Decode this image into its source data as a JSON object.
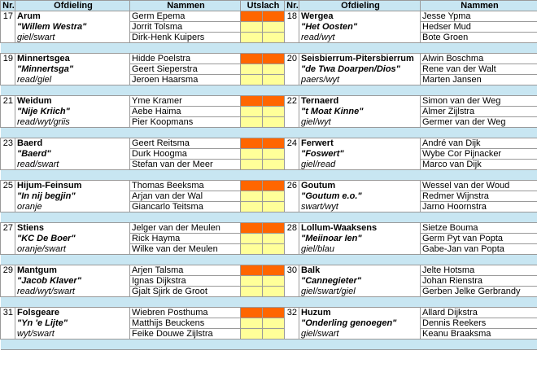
{
  "colors": {
    "header_bg": "#c8e6f2",
    "result_top": "#ff6600",
    "result_cell": "#ffff99"
  },
  "headers": {
    "nr": "Nr.",
    "ofdieling": "Ofdieling",
    "nammen": "Nammen",
    "utslach": "Utslach",
    "nr2": "Nr.",
    "ofdieling2": "Ofdieling",
    "nammen2": "Nammen"
  },
  "matches": [
    {
      "left": {
        "nr": "17",
        "club": "Arum",
        "nick": "\"Willem Westra\"",
        "colors": "giel/swart",
        "players": [
          "Germ Epema",
          "Jorrit Tolsma",
          "Dirk-Henk Kuipers"
        ]
      },
      "right": {
        "nr": "18",
        "club": "Wergea",
        "nick": "\"Het Oosten\"",
        "colors": "read/wyt",
        "players": [
          "Jesse Ypma",
          "Hedser Mud",
          "Bote Groen"
        ]
      }
    },
    {
      "left": {
        "nr": "19",
        "club": "Minnertsgea",
        "nick": "\"Minnertsga\"",
        "colors": "read/giel",
        "players": [
          "Hidde Poelstra",
          "Geert Sieperstra",
          "Jeroen Haarsma"
        ]
      },
      "right": {
        "nr": "20",
        "club": "Seisbierrum-Pitersbierrum",
        "nick": "\"de Twa Doarpen/Dios\"",
        "colors": "paers/wyt",
        "players": [
          "Alwin Boschma",
          "Rene van der Walt",
          "Marten Jansen"
        ]
      }
    },
    {
      "left": {
        "nr": "21",
        "club": "Weidum",
        "nick": "\"Nije Kriich\"",
        "colors": "read/wyt/griis",
        "players": [
          "Yme Kramer",
          "Aebe Haima",
          "Pier Koopmans"
        ]
      },
      "right": {
        "nr": "22",
        "club": "Ternaerd",
        "nick": "\"t Moat Kinne\"",
        "colors": "giel/wyt",
        "players": [
          "Simon van der Weg",
          "Almer Zijlstra",
          "Germer van der Weg"
        ]
      }
    },
    {
      "left": {
        "nr": "23",
        "club": "Baerd",
        "nick": "\"Baerd\"",
        "colors": "read/swart",
        "players": [
          "Geert Reitsma",
          "Durk Hoogma",
          "Stefan van der Meer"
        ]
      },
      "right": {
        "nr": "24",
        "club": "Ferwert",
        "nick": "\"Foswert\"",
        "colors": "giel/read",
        "players": [
          "André van Dijk",
          "Wybe Cor Pijnacker",
          "Marco van Dijk"
        ]
      }
    },
    {
      "left": {
        "nr": "25",
        "club": "Hijum-Feinsum",
        "nick": "\"In nij begjin\"",
        "colors": "oranje",
        "players": [
          "Thomas Beeksma",
          "Arjan van der Wal",
          "Giancarlo Teitsma"
        ]
      },
      "right": {
        "nr": "26",
        "club": "Goutum",
        "nick": "\"Goutum e.o.\"",
        "colors": "swart/wyt",
        "players": [
          "Wessel van der Woud",
          "Redmer Wijnstra",
          "Jarno Hoornstra"
        ]
      }
    },
    {
      "left": {
        "nr": "27",
        "club": "Stiens",
        "nick": "\"KC De Boer\"",
        "colors": "oranje/swart",
        "players": [
          "Jelger van der Meulen",
          "Rick Hayma",
          "Wilke van der Meulen"
        ]
      },
      "right": {
        "nr": "28",
        "club": "Lollum-Waaksens",
        "nick": "\"Meiinoar Ien\"",
        "colors": "giel/blau",
        "players": [
          "Sietze Bouma",
          "Germ Pyt van Popta",
          "Gabe-Jan van Popta"
        ]
      }
    },
    {
      "left": {
        "nr": "29",
        "club": "Mantgum",
        "nick": "\"Jacob Klaver\"",
        "colors": "read/wyt/swart",
        "players": [
          "Arjen Talsma",
          "Ignas Dijkstra",
          "Gjalt Sjirk de Groot"
        ]
      },
      "right": {
        "nr": "30",
        "club": "Balk",
        "nick": "\"Cannegieter\"",
        "colors": "giel/swart/giel",
        "players": [
          "Jelte Hotsma",
          "Johan Rienstra",
          "Gerben Jelke Gerbrandy"
        ]
      }
    },
    {
      "left": {
        "nr": "31",
        "club": "Folsgeare",
        "nick": "\"Yn 'e Lijte\"",
        "colors": "wyt/swart",
        "players": [
          "Wiebren Posthuma",
          "Matthijs Beuckens",
          "Feike Douwe Zijlstra"
        ]
      },
      "right": {
        "nr": "32",
        "club": "Huzum",
        "nick": "\"Onderling genoegen\"",
        "colors": "giel/swart",
        "players": [
          "Allard Dijkstra",
          "Dennis Reekers",
          "Keanu Braaksma"
        ]
      }
    }
  ]
}
